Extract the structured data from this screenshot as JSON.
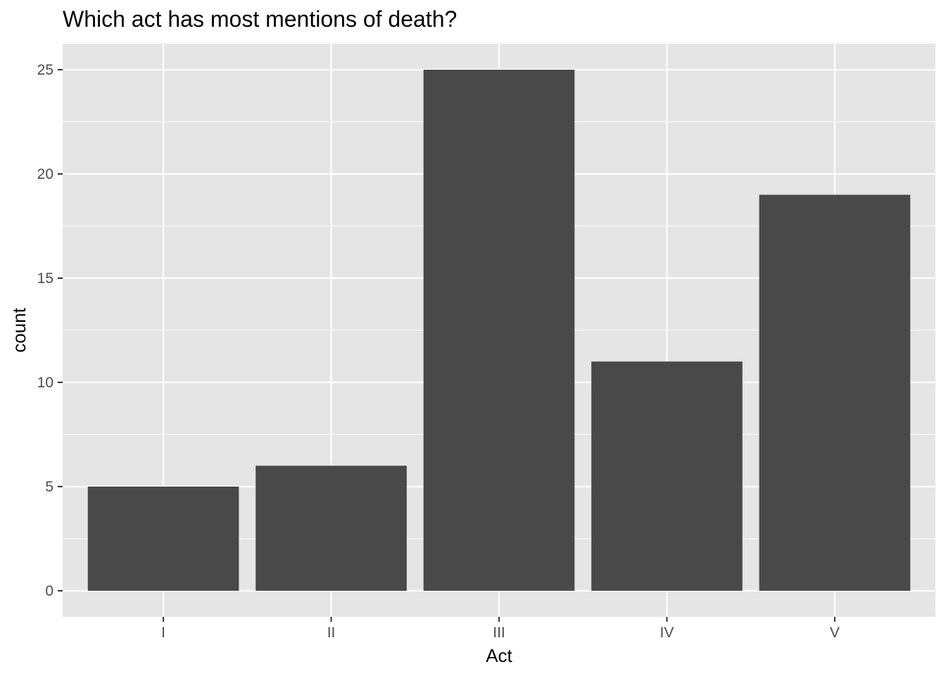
{
  "chart_data": {
    "type": "bar",
    "title": "Which act has most mentions of death?",
    "xlabel": "Act",
    "ylabel": "count",
    "categories": [
      "I",
      "II",
      "III",
      "IV",
      "V"
    ],
    "values": [
      5,
      6,
      25,
      11,
      19
    ],
    "ylim": [
      -1.25,
      26.25
    ],
    "yticks": [
      0,
      5,
      10,
      15,
      20,
      25
    ],
    "grid": true,
    "legend": "none",
    "colors": {
      "panel": "#e5e5e5",
      "grid": "#ffffff",
      "bar": "#494949",
      "tick_text": "#4d4d4d",
      "text": "#000000"
    }
  }
}
